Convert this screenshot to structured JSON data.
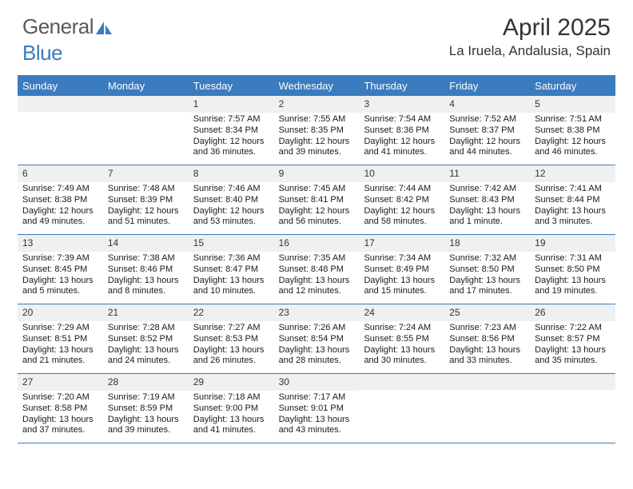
{
  "brand": {
    "text1": "General",
    "text2": "Blue"
  },
  "title": "April 2025",
  "location": "La Iruela, Andalusia, Spain",
  "colors": {
    "accent": "#3b7bbf",
    "dow_bg": "#3b7bbf",
    "dow_text": "#ffffff",
    "daynum_bg": "#eef0f2",
    "border": "#3b7bbf",
    "text": "#1a1a1a",
    "background": "#ffffff"
  },
  "dow": [
    "Sunday",
    "Monday",
    "Tuesday",
    "Wednesday",
    "Thursday",
    "Friday",
    "Saturday"
  ],
  "weeks": [
    [
      null,
      null,
      {
        "n": "1",
        "sr": "Sunrise: 7:57 AM",
        "ss": "Sunset: 8:34 PM",
        "d1": "Daylight: 12 hours",
        "d2": "and 36 minutes."
      },
      {
        "n": "2",
        "sr": "Sunrise: 7:55 AM",
        "ss": "Sunset: 8:35 PM",
        "d1": "Daylight: 12 hours",
        "d2": "and 39 minutes."
      },
      {
        "n": "3",
        "sr": "Sunrise: 7:54 AM",
        "ss": "Sunset: 8:36 PM",
        "d1": "Daylight: 12 hours",
        "d2": "and 41 minutes."
      },
      {
        "n": "4",
        "sr": "Sunrise: 7:52 AM",
        "ss": "Sunset: 8:37 PM",
        "d1": "Daylight: 12 hours",
        "d2": "and 44 minutes."
      },
      {
        "n": "5",
        "sr": "Sunrise: 7:51 AM",
        "ss": "Sunset: 8:38 PM",
        "d1": "Daylight: 12 hours",
        "d2": "and 46 minutes."
      }
    ],
    [
      {
        "n": "6",
        "sr": "Sunrise: 7:49 AM",
        "ss": "Sunset: 8:38 PM",
        "d1": "Daylight: 12 hours",
        "d2": "and 49 minutes."
      },
      {
        "n": "7",
        "sr": "Sunrise: 7:48 AM",
        "ss": "Sunset: 8:39 PM",
        "d1": "Daylight: 12 hours",
        "d2": "and 51 minutes."
      },
      {
        "n": "8",
        "sr": "Sunrise: 7:46 AM",
        "ss": "Sunset: 8:40 PM",
        "d1": "Daylight: 12 hours",
        "d2": "and 53 minutes."
      },
      {
        "n": "9",
        "sr": "Sunrise: 7:45 AM",
        "ss": "Sunset: 8:41 PM",
        "d1": "Daylight: 12 hours",
        "d2": "and 56 minutes."
      },
      {
        "n": "10",
        "sr": "Sunrise: 7:44 AM",
        "ss": "Sunset: 8:42 PM",
        "d1": "Daylight: 12 hours",
        "d2": "and 58 minutes."
      },
      {
        "n": "11",
        "sr": "Sunrise: 7:42 AM",
        "ss": "Sunset: 8:43 PM",
        "d1": "Daylight: 13 hours",
        "d2": "and 1 minute."
      },
      {
        "n": "12",
        "sr": "Sunrise: 7:41 AM",
        "ss": "Sunset: 8:44 PM",
        "d1": "Daylight: 13 hours",
        "d2": "and 3 minutes."
      }
    ],
    [
      {
        "n": "13",
        "sr": "Sunrise: 7:39 AM",
        "ss": "Sunset: 8:45 PM",
        "d1": "Daylight: 13 hours",
        "d2": "and 5 minutes."
      },
      {
        "n": "14",
        "sr": "Sunrise: 7:38 AM",
        "ss": "Sunset: 8:46 PM",
        "d1": "Daylight: 13 hours",
        "d2": "and 8 minutes."
      },
      {
        "n": "15",
        "sr": "Sunrise: 7:36 AM",
        "ss": "Sunset: 8:47 PM",
        "d1": "Daylight: 13 hours",
        "d2": "and 10 minutes."
      },
      {
        "n": "16",
        "sr": "Sunrise: 7:35 AM",
        "ss": "Sunset: 8:48 PM",
        "d1": "Daylight: 13 hours",
        "d2": "and 12 minutes."
      },
      {
        "n": "17",
        "sr": "Sunrise: 7:34 AM",
        "ss": "Sunset: 8:49 PM",
        "d1": "Daylight: 13 hours",
        "d2": "and 15 minutes."
      },
      {
        "n": "18",
        "sr": "Sunrise: 7:32 AM",
        "ss": "Sunset: 8:50 PM",
        "d1": "Daylight: 13 hours",
        "d2": "and 17 minutes."
      },
      {
        "n": "19",
        "sr": "Sunrise: 7:31 AM",
        "ss": "Sunset: 8:50 PM",
        "d1": "Daylight: 13 hours",
        "d2": "and 19 minutes."
      }
    ],
    [
      {
        "n": "20",
        "sr": "Sunrise: 7:29 AM",
        "ss": "Sunset: 8:51 PM",
        "d1": "Daylight: 13 hours",
        "d2": "and 21 minutes."
      },
      {
        "n": "21",
        "sr": "Sunrise: 7:28 AM",
        "ss": "Sunset: 8:52 PM",
        "d1": "Daylight: 13 hours",
        "d2": "and 24 minutes."
      },
      {
        "n": "22",
        "sr": "Sunrise: 7:27 AM",
        "ss": "Sunset: 8:53 PM",
        "d1": "Daylight: 13 hours",
        "d2": "and 26 minutes."
      },
      {
        "n": "23",
        "sr": "Sunrise: 7:26 AM",
        "ss": "Sunset: 8:54 PM",
        "d1": "Daylight: 13 hours",
        "d2": "and 28 minutes."
      },
      {
        "n": "24",
        "sr": "Sunrise: 7:24 AM",
        "ss": "Sunset: 8:55 PM",
        "d1": "Daylight: 13 hours",
        "d2": "and 30 minutes."
      },
      {
        "n": "25",
        "sr": "Sunrise: 7:23 AM",
        "ss": "Sunset: 8:56 PM",
        "d1": "Daylight: 13 hours",
        "d2": "and 33 minutes."
      },
      {
        "n": "26",
        "sr": "Sunrise: 7:22 AM",
        "ss": "Sunset: 8:57 PM",
        "d1": "Daylight: 13 hours",
        "d2": "and 35 minutes."
      }
    ],
    [
      {
        "n": "27",
        "sr": "Sunrise: 7:20 AM",
        "ss": "Sunset: 8:58 PM",
        "d1": "Daylight: 13 hours",
        "d2": "and 37 minutes."
      },
      {
        "n": "28",
        "sr": "Sunrise: 7:19 AM",
        "ss": "Sunset: 8:59 PM",
        "d1": "Daylight: 13 hours",
        "d2": "and 39 minutes."
      },
      {
        "n": "29",
        "sr": "Sunrise: 7:18 AM",
        "ss": "Sunset: 9:00 PM",
        "d1": "Daylight: 13 hours",
        "d2": "and 41 minutes."
      },
      {
        "n": "30",
        "sr": "Sunrise: 7:17 AM",
        "ss": "Sunset: 9:01 PM",
        "d1": "Daylight: 13 hours",
        "d2": "and 43 minutes."
      },
      null,
      null,
      null
    ]
  ]
}
